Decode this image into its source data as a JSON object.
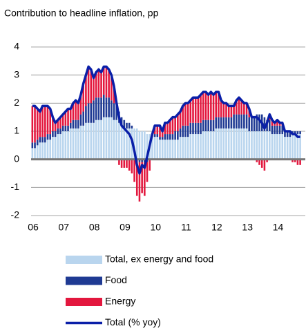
{
  "chart_data": {
    "type": "bar",
    "stacked": true,
    "title": "Contribution to headline inflation, pp",
    "categories": [
      "06",
      null,
      null,
      null,
      null,
      null,
      null,
      null,
      null,
      null,
      null,
      null,
      "07",
      null,
      null,
      null,
      null,
      null,
      null,
      null,
      null,
      null,
      null,
      null,
      "08",
      null,
      null,
      null,
      null,
      null,
      null,
      null,
      null,
      null,
      null,
      null,
      "09",
      null,
      null,
      null,
      null,
      null,
      null,
      null,
      null,
      null,
      null,
      null,
      "10",
      null,
      null,
      null,
      null,
      null,
      null,
      null,
      null,
      null,
      null,
      null,
      "11",
      null,
      null,
      null,
      null,
      null,
      null,
      null,
      null,
      null,
      null,
      null,
      "12",
      null,
      null,
      null,
      null,
      null,
      null,
      null,
      null,
      null,
      null,
      null,
      "13",
      null,
      null,
      null,
      null,
      null,
      null,
      null,
      null,
      null,
      null,
      null,
      "14",
      null,
      null,
      null,
      null,
      null,
      null,
      null,
      null,
      null
    ],
    "ylim": [
      -2,
      4
    ],
    "yticks": [
      -2,
      -1,
      0,
      1,
      2,
      3,
      4
    ],
    "grid": true,
    "series": [
      {
        "name": "Total, ex energy and food",
        "color": "#b9d5ee",
        "values": [
          0.4,
          0.4,
          0.5,
          0.6,
          0.6,
          0.6,
          0.7,
          0.7,
          0.8,
          0.8,
          0.9,
          0.9,
          1.0,
          1.0,
          1.0,
          1.1,
          1.1,
          1.1,
          1.1,
          1.2,
          1.2,
          1.3,
          1.3,
          1.3,
          1.3,
          1.4,
          1.4,
          1.4,
          1.5,
          1.5,
          1.5,
          1.5,
          1.4,
          1.4,
          1.3,
          1.2,
          1.1,
          1.1,
          1.1,
          1.1,
          1.1,
          1.1,
          1.0,
          1.0,
          1.0,
          0.9,
          0.9,
          0.8,
          0.8,
          0.8,
          0.7,
          0.7,
          0.7,
          0.7,
          0.7,
          0.7,
          0.7,
          0.7,
          0.8,
          0.8,
          0.8,
          0.8,
          0.9,
          0.9,
          0.9,
          0.9,
          0.9,
          1.0,
          1.0,
          1.0,
          1.0,
          1.0,
          1.1,
          1.1,
          1.1,
          1.1,
          1.1,
          1.1,
          1.1,
          1.1,
          1.1,
          1.1,
          1.1,
          1.1,
          1.1,
          1.0,
          1.0,
          1.0,
          1.0,
          1.0,
          1.0,
          1.0,
          1.0,
          1.0,
          0.9,
          0.9,
          0.9,
          0.9,
          0.9,
          0.8,
          0.8,
          0.8,
          0.9,
          0.9,
          0.9,
          0.9
        ]
      },
      {
        "name": "Food",
        "color": "#1f3a93",
        "values": [
          0.2,
          0.2,
          0.2,
          0.2,
          0.2,
          0.2,
          0.2,
          0.2,
          0.2,
          0.2,
          0.2,
          0.2,
          0.2,
          0.2,
          0.2,
          0.2,
          0.3,
          0.3,
          0.3,
          0.4,
          0.5,
          0.6,
          0.7,
          0.7,
          0.8,
          0.8,
          0.8,
          0.8,
          0.8,
          0.7,
          0.7,
          0.6,
          0.6,
          0.5,
          0.4,
          0.3,
          0.3,
          0.2,
          0.2,
          0.1,
          0.0,
          0.0,
          -0.1,
          -0.1,
          -0.1,
          -0.1,
          0.0,
          0.0,
          0.1,
          0.1,
          0.1,
          0.1,
          0.2,
          0.2,
          0.2,
          0.2,
          0.3,
          0.3,
          0.3,
          0.4,
          0.4,
          0.4,
          0.4,
          0.4,
          0.4,
          0.4,
          0.4,
          0.4,
          0.4,
          0.4,
          0.4,
          0.4,
          0.4,
          0.4,
          0.4,
          0.4,
          0.4,
          0.4,
          0.4,
          0.5,
          0.5,
          0.5,
          0.5,
          0.5,
          0.5,
          0.5,
          0.5,
          0.5,
          0.6,
          0.6,
          0.6,
          0.5,
          0.4,
          0.4,
          0.3,
          0.3,
          0.3,
          0.3,
          0.3,
          0.2,
          0.2,
          0.2,
          0.1,
          0.1,
          0.1,
          0.1
        ]
      },
      {
        "name": "Energy",
        "color": "#e3173e",
        "values": [
          1.3,
          1.3,
          1.1,
          0.9,
          1.1,
          1.1,
          1.0,
          0.9,
          0.5,
          0.3,
          0.3,
          0.4,
          0.4,
          0.5,
          0.6,
          0.5,
          0.6,
          0.7,
          0.6,
          0.7,
          1.0,
          1.1,
          1.3,
          1.2,
          0.8,
          0.9,
          1.0,
          0.9,
          1.0,
          1.1,
          1.0,
          0.9,
          0.6,
          0.1,
          -0.2,
          -0.3,
          -0.3,
          -0.3,
          -0.4,
          -0.5,
          -0.8,
          -1.3,
          -1.4,
          -1.1,
          -1.2,
          -0.7,
          -0.4,
          0.1,
          0.3,
          0.3,
          0.4,
          0.2,
          0.4,
          0.4,
          0.5,
          0.6,
          0.5,
          0.6,
          0.6,
          0.7,
          0.8,
          0.8,
          0.8,
          0.9,
          0.9,
          0.9,
          1.0,
          1.0,
          1.0,
          0.9,
          1.0,
          0.9,
          0.9,
          0.9,
          0.6,
          0.5,
          0.5,
          0.4,
          0.4,
          0.3,
          0.5,
          0.6,
          0.5,
          0.4,
          0.4,
          0.3,
          0.0,
          0.0,
          -0.1,
          -0.2,
          -0.3,
          -0.4,
          -0.1,
          0.2,
          0.2,
          0.1,
          0.2,
          0.1,
          0.1,
          0.0,
          0.0,
          0.0,
          -0.1,
          -0.1,
          -0.2,
          -0.2
        ]
      },
      {
        "name": "Total (% yoy)",
        "color": "#0a1fa8",
        "type": "line",
        "values": [
          1.9,
          1.9,
          1.8,
          1.7,
          1.9,
          1.9,
          1.9,
          1.8,
          1.5,
          1.3,
          1.4,
          1.5,
          1.6,
          1.7,
          1.8,
          1.8,
          2.0,
          2.1,
          2.0,
          2.3,
          2.7,
          3.0,
          3.3,
          3.2,
          2.9,
          3.1,
          3.2,
          3.1,
          3.3,
          3.3,
          3.2,
          3.0,
          2.6,
          2.0,
          1.5,
          1.2,
          1.1,
          1.0,
          0.9,
          0.7,
          0.3,
          -0.2,
          -0.5,
          -0.2,
          -0.3,
          0.1,
          0.5,
          0.9,
          1.2,
          1.2,
          1.2,
          1.0,
          1.3,
          1.3,
          1.4,
          1.5,
          1.5,
          1.6,
          1.7,
          1.9,
          2.0,
          2.0,
          2.1,
          2.2,
          2.2,
          2.2,
          2.3,
          2.4,
          2.4,
          2.3,
          2.4,
          2.3,
          2.4,
          2.4,
          2.1,
          2.0,
          2.0,
          1.9,
          1.9,
          1.9,
          2.1,
          2.2,
          2.1,
          2.0,
          2.0,
          1.8,
          1.5,
          1.5,
          1.5,
          1.4,
          1.3,
          1.1,
          1.3,
          1.6,
          1.4,
          1.3,
          1.4,
          1.3,
          1.3,
          1.0,
          1.0,
          1.0,
          0.9,
          0.9,
          0.8,
          0.8
        ]
      }
    ]
  }
}
